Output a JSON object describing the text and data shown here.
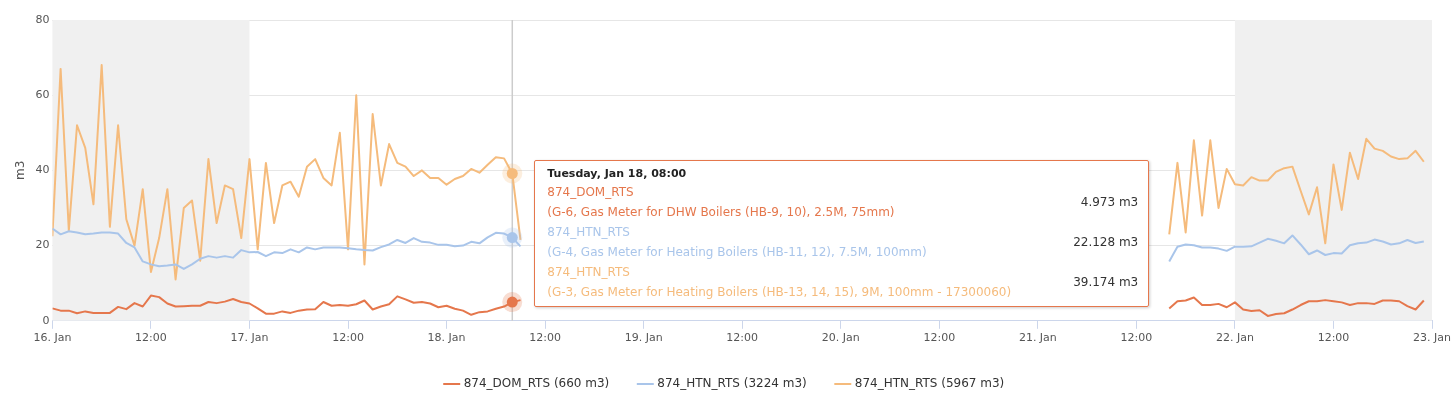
{
  "chart_data": {
    "type": "line",
    "ylabel": "m3",
    "x": [
      "--01-16T00:00",
      "--01-16T01:00",
      "--01-16T02:00",
      "--01-16T03:00",
      "--01-16T04:00",
      "--01-16T05:00",
      "--01-16T06:00",
      "--01-16T07:00",
      "--01-16T08:00",
      "--01-16T09:00",
      "--01-16T10:00",
      "--01-16T11:00",
      "--01-16T12:00",
      "--01-16T13:00",
      "--01-16T14:00",
      "--01-16T15:00",
      "--01-16T16:00",
      "--01-16T17:00",
      "--01-16T18:00",
      "--01-16T19:00",
      "--01-16T20:00",
      "--01-16T21:00",
      "--01-16T22:00",
      "--01-16T23:00",
      "--01-17T00:00",
      "--01-17T01:00",
      "--01-17T02:00",
      "--01-17T03:00",
      "--01-17T04:00",
      "--01-17T05:00",
      "--01-17T06:00",
      "--01-17T07:00",
      "--01-17T08:00",
      "--01-17T09:00",
      "--01-17T10:00",
      "--01-17T11:00",
      "--01-17T12:00",
      "--01-17T13:00",
      "--01-17T14:00",
      "--01-17T15:00",
      "--01-17T16:00",
      "--01-17T17:00",
      "--01-17T18:00",
      "--01-17T19:00",
      "--01-17T20:00",
      "--01-17T21:00",
      "--01-17T22:00",
      "--01-17T23:00",
      "--01-18T00:00",
      "--01-18T01:00",
      "--01-18T02:00",
      "--01-18T03:00",
      "--01-18T04:00",
      "--01-18T05:00",
      "--01-18T06:00",
      "--01-18T07:00",
      "--01-18T08:00",
      "--01-18T09:00",
      "--01-18T10:00",
      "--01-18T11:00",
      "--01-18T12:00",
      "--01-18T13:00",
      "--01-18T14:00",
      "--01-18T15:00",
      "--01-18T16:00",
      "--01-18T17:00",
      "--01-18T18:00",
      "--01-18T19:00",
      "--01-18T20:00",
      "--01-18T21:00",
      "--01-18T22:00",
      "--01-18T23:00",
      "--01-19T00:00",
      "--01-19T01:00",
      "--01-19T02:00",
      "--01-19T03:00",
      "--01-19T04:00",
      "--01-19T05:00",
      "--01-19T06:00",
      "--01-19T07:00",
      "--01-19T08:00",
      "--01-19T09:00",
      "--01-19T10:00",
      "--01-19T11:00",
      "--01-19T12:00",
      "--01-19T13:00",
      "--01-19T14:00",
      "--01-19T15:00",
      "--01-19T16:00",
      "--01-19T17:00",
      "--01-19T18:00",
      "--01-19T19:00",
      "--01-19T20:00",
      "--01-19T21:00",
      "--01-19T22:00",
      "--01-19T23:00",
      "--01-20T00:00",
      "--01-20T01:00",
      "--01-20T02:00",
      "--01-20T03:00",
      "--01-20T04:00",
      "--01-20T05:00",
      "--01-20T06:00",
      "--01-20T07:00",
      "--01-20T08:00",
      "--01-20T09:00",
      "--01-20T10:00",
      "--01-20T11:00",
      "--01-20T12:00",
      "--01-20T13:00",
      "--01-20T14:00",
      "--01-20T15:00",
      "--01-20T16:00",
      "--01-20T17:00",
      "--01-20T18:00",
      "--01-20T19:00",
      "--01-20T20:00",
      "--01-20T21:00",
      "--01-20T22:00",
      "--01-20T23:00",
      "--01-21T00:00",
      "--01-21T01:00",
      "--01-21T02:00",
      "--01-21T03:00",
      "--01-21T04:00",
      "--01-21T05:00",
      "--01-21T06:00",
      "--01-21T07:00",
      "--01-21T08:00",
      "--01-21T09:00",
      "--01-21T10:00",
      "--01-21T11:00",
      "--01-21T12:00",
      "--01-21T13:00",
      "--01-21T14:00",
      "--01-21T15:00",
      "--01-21T16:00",
      "--01-21T17:00",
      "--01-21T18:00",
      "--01-21T19:00",
      "--01-21T20:00",
      "--01-21T21:00",
      "--01-21T22:00",
      "--01-21T23:00",
      "--01-22T00:00",
      "--01-22T01:00",
      "--01-22T02:00",
      "--01-22T03:00",
      "--01-22T04:00",
      "--01-22T05:00",
      "--01-22T06:00",
      "--01-22T07:00",
      "--01-22T08:00",
      "--01-22T09:00",
      "--01-22T10:00",
      "--01-22T11:00",
      "--01-22T12:00",
      "--01-22T13:00",
      "--01-22T14:00",
      "--01-22T15:00",
      "--01-22T16:00",
      "--01-22T17:00",
      "--01-22T18:00",
      "--01-22T19:00",
      "--01-22T20:00",
      "--01-22T21:00",
      "--01-22T22:00",
      "--01-22T23:00"
    ],
    "series": [
      {
        "name": "874_DOM_RTS (660 m3)",
        "color": "#e5774c",
        "values": [
          3.3,
          2.7,
          2.7,
          2,
          2.5,
          2.1,
          2.1,
          2.1,
          3.7,
          3.1,
          4.7,
          3.8,
          6.7,
          6.3,
          4.6,
          3.8,
          3.9,
          4,
          4,
          5,
          4.7,
          5.1,
          5.8,
          5,
          4.6,
          3.3,
          1.9,
          1.9,
          2.5,
          2.1,
          2.7,
          3,
          3.1,
          5,
          4,
          4.2,
          4,
          4.4,
          5.4,
          3,
          3.8,
          4.4,
          6.5,
          5.7,
          4.8,
          5,
          4.6,
          3.6,
          4,
          3.2,
          2.7,
          1.6,
          2.3,
          2.5,
          3.2,
          3.8,
          4.973,
          5.5,
          null,
          null,
          null,
          null,
          null,
          null,
          null,
          null,
          null,
          null,
          null,
          null,
          null,
          null,
          null,
          null,
          null,
          null,
          null,
          null,
          null,
          null,
          null,
          null,
          null,
          null,
          null,
          null,
          null,
          null,
          null,
          null,
          null,
          null,
          null,
          null,
          null,
          null,
          null,
          null,
          null,
          null,
          null,
          null,
          null,
          null,
          null,
          null,
          null,
          null,
          null,
          null,
          null,
          null,
          null,
          null,
          null,
          null,
          null,
          null,
          null,
          null,
          null,
          null,
          null,
          null,
          null,
          null,
          null,
          null,
          null,
          null,
          null,
          null,
          null,
          null,
          null,
          null,
          3.3,
          5.2,
          5.4,
          6.2,
          4.2,
          4.2,
          4.5,
          3.6,
          4.9,
          3,
          2.6,
          2.8,
          1.3,
          1.8,
          2,
          3,
          4.2,
          5.2,
          5.2,
          5.5,
          5.2,
          4.9,
          4.2,
          4.7,
          4.7,
          4.5,
          5.4,
          5.4,
          5.2,
          3.9,
          3,
          5.4
        ]
      },
      {
        "name": "874_HTN_RTS (3224 m3)",
        "color": "#a9c5ea",
        "values": [
          24.5,
          23,
          23.8,
          23.5,
          23,
          23.2,
          23.5,
          23.5,
          23.2,
          20.7,
          19.5,
          15.8,
          15,
          14.5,
          14.7,
          15,
          13.8,
          15,
          16.5,
          17.2,
          16.8,
          17.2,
          16.8,
          18.8,
          18.2,
          18.3,
          17.2,
          18.2,
          18,
          19,
          18.2,
          19.5,
          19,
          19.5,
          19.5,
          19.5,
          19.3,
          19,
          18.8,
          18.7,
          19.6,
          20.3,
          21.5,
          20.7,
          22,
          21,
          20.8,
          20.2,
          20.2,
          19.8,
          20,
          21,
          20.6,
          22.2,
          23.4,
          23.2,
          22.128,
          19.8,
          null,
          null,
          null,
          null,
          null,
          null,
          null,
          null,
          null,
          null,
          null,
          null,
          null,
          null,
          null,
          null,
          null,
          null,
          null,
          null,
          null,
          null,
          null,
          null,
          null,
          null,
          null,
          null,
          null,
          null,
          null,
          null,
          null,
          null,
          null,
          null,
          null,
          null,
          null,
          null,
          null,
          null,
          null,
          null,
          null,
          null,
          null,
          null,
          null,
          null,
          null,
          null,
          null,
          null,
          null,
          null,
          null,
          null,
          null,
          null,
          null,
          null,
          null,
          null,
          null,
          null,
          null,
          null,
          null,
          null,
          null,
          null,
          null,
          null,
          null,
          null,
          null,
          null,
          15.8,
          19.7,
          20.3,
          20.1,
          19.5,
          19.5,
          19.2,
          18.6,
          19.7,
          19.7,
          19.8,
          20.8,
          21.8,
          21.3,
          20.6,
          22.7,
          20.3,
          17.7,
          18.7,
          17.5,
          18,
          17.9,
          20.1,
          20.6,
          20.8,
          21.6,
          21.1,
          20.3,
          20.6,
          21.5,
          20.7,
          21.1
        ]
      },
      {
        "name": "874_HTN_RTS (5967 m3)",
        "color": "#f5bb7c",
        "values": [
          22.5,
          67,
          24,
          52,
          46,
          31,
          68,
          25,
          52,
          27,
          20,
          35,
          13,
          22,
          35,
          11,
          30,
          32,
          16,
          43,
          26,
          36,
          35,
          22,
          43,
          19,
          42,
          26,
          36,
          37,
          33,
          41,
          43,
          38,
          36,
          50,
          19,
          60,
          15,
          55,
          36,
          47,
          42,
          41,
          38.5,
          40,
          38,
          38,
          36.2,
          37.7,
          38.5,
          40.4,
          39.4,
          41.5,
          43.5,
          43.2,
          39.174,
          21.5,
          null,
          null,
          null,
          null,
          null,
          null,
          null,
          null,
          null,
          null,
          null,
          null,
          null,
          null,
          null,
          null,
          null,
          null,
          null,
          null,
          null,
          null,
          null,
          null,
          null,
          null,
          null,
          null,
          null,
          null,
          null,
          null,
          null,
          null,
          null,
          null,
          null,
          null,
          null,
          null,
          null,
          null,
          null,
          null,
          null,
          null,
          null,
          null,
          null,
          null,
          null,
          null,
          null,
          null,
          null,
          null,
          null,
          null,
          null,
          null,
          null,
          null,
          null,
          null,
          null,
          null,
          null,
          null,
          null,
          null,
          null,
          null,
          null,
          null,
          null,
          null,
          null,
          null,
          23,
          42,
          23.5,
          48,
          28,
          48,
          30,
          40.4,
          36.3,
          36,
          38.2,
          37.3,
          37.3,
          39.6,
          40.6,
          41,
          34.6,
          28.3,
          35.5,
          20.6,
          41.6,
          29.5,
          44.7,
          37.7,
          48.4,
          45.8,
          45.2,
          43.7,
          43,
          43.2,
          45.2,
          42.3
        ]
      }
    ],
    "xlim": [
      "--01-16T00:00",
      "--01-23T00:00"
    ],
    "xticks": [
      {
        "value": "--01-16T00:00",
        "label": "16. Jan"
      },
      {
        "value": "--01-16T12:00",
        "label": "12:00"
      },
      {
        "value": "--01-17T00:00",
        "label": "17. Jan"
      },
      {
        "value": "--01-17T12:00",
        "label": "12:00"
      },
      {
        "value": "--01-18T00:00",
        "label": "18. Jan"
      },
      {
        "value": "--01-18T12:00",
        "label": "12:00"
      },
      {
        "value": "--01-19T00:00",
        "label": "19. Jan"
      },
      {
        "value": "--01-19T12:00",
        "label": "12:00"
      },
      {
        "value": "--01-20T00:00",
        "label": "20. Jan"
      },
      {
        "value": "--01-20T12:00",
        "label": "12:00"
      },
      {
        "value": "--01-21T00:00",
        "label": "21. Jan"
      },
      {
        "value": "--01-21T12:00",
        "label": "12:00"
      },
      {
        "value": "--01-22T00:00",
        "label": "22. Jan"
      },
      {
        "value": "--01-22T12:00",
        "label": "12:00"
      },
      {
        "value": "--01-23T00:00",
        "label": "23. Jan"
      }
    ],
    "ylim": [
      0,
      80
    ],
    "yticks": [
      0,
      20,
      40,
      60,
      80
    ],
    "grid": "y",
    "legend": "bottom",
    "marker": "none",
    "line_style": "solid",
    "bands": [
      {
        "axis": "x",
        "from": "--01-16T00:00",
        "to": "--01-17T00:00",
        "color": "#f0f0f0"
      },
      {
        "axis": "x",
        "from": "--01-22T00:00",
        "to": "--01-23T00:00",
        "color": "#f0f0f0"
      }
    ],
    "ref_lines": [
      {
        "axis": "x",
        "value": "--01-18T08:00",
        "color": "#cccccc"
      }
    ],
    "annotations": [
      "Tuesday, Jan 18, 08:00",
      "874_DOM_RTS",
      "(G-6, Gas Meter for DHW Boilers (HB-9, 10), 2.5M, 75mm)",
      "4.973 m3",
      "874_HTN_RTS",
      "(G-4, Gas Meter for Heating Boilers (HB-11, 12), 7.5M, 100mm)",
      "22.128 m3",
      "874_HTN_RTS",
      "(G-3, Gas Meter for Heating Boilers (HB-13, 14, 15), 9M, 100mm - 17300060)",
      "39.174 m3"
    ]
  }
}
